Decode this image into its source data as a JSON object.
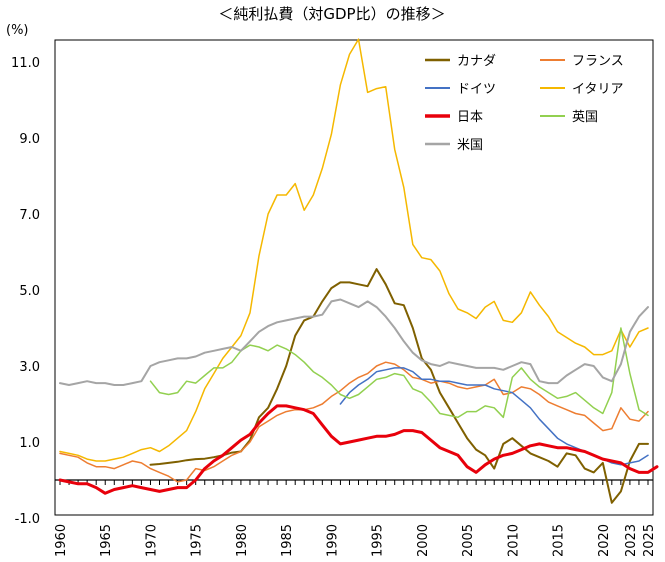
{
  "chart_data": {
    "type": "line",
    "title": "＜純利払費（対GDP比）の推移＞",
    "ylabel": "(%)",
    "xlabel": "",
    "ylim": [
      -1.0,
      11.6
    ],
    "y_ticks": [
      "-1.0",
      "1.0",
      "3.0",
      "5.0",
      "7.0",
      "9.0",
      "11.0"
    ],
    "x_tick_labels": [
      "1960",
      "1965",
      "1970",
      "1975",
      "1980",
      "1985",
      "1990",
      "1995",
      "2000",
      "2005",
      "2010",
      "2015",
      "2020",
      "2023",
      "2025"
    ],
    "grid": false,
    "series": [
      {
        "name": "カナダ",
        "color": "#7f6000",
        "width": 2,
        "start": 1970,
        "values": [
          0.4,
          0.42,
          0.45,
          0.48,
          0.52,
          0.55,
          0.56,
          0.6,
          0.65,
          0.72,
          0.75,
          1.05,
          1.65,
          1.9,
          2.4,
          3.0,
          3.8,
          4.2,
          4.3,
          4.7,
          5.05,
          5.2,
          5.2,
          5.15,
          5.1,
          5.55,
          5.15,
          4.65,
          4.6,
          4.0,
          3.2,
          2.9,
          2.3,
          1.9,
          1.5,
          1.1,
          0.8,
          0.65,
          0.3,
          0.95,
          1.1,
          0.9,
          0.7,
          0.6,
          0.5,
          0.35,
          0.7,
          0.65,
          0.3,
          0.2,
          0.45,
          -0.6,
          -0.3,
          0.5,
          0.95,
          0.95
        ]
      },
      {
        "name": "フランス",
        "color": "#ed7d31",
        "width": 1.5,
        "start": 1960,
        "values": [
          0.7,
          0.65,
          0.6,
          0.45,
          0.35,
          0.35,
          0.3,
          0.4,
          0.5,
          0.45,
          0.3,
          0.2,
          0.1,
          -0.05,
          0.0,
          0.3,
          0.25,
          0.35,
          0.5,
          0.65,
          0.75,
          1.0,
          1.4,
          1.55,
          1.7,
          1.8,
          1.85,
          1.85,
          1.9,
          2.0,
          2.2,
          2.35,
          2.55,
          2.7,
          2.8,
          3.0,
          3.1,
          3.05,
          2.9,
          2.7,
          2.65,
          2.55,
          2.6,
          2.55,
          2.45,
          2.4,
          2.45,
          2.5,
          2.65,
          2.25,
          2.3,
          2.45,
          2.4,
          2.25,
          2.05,
          1.95,
          1.85,
          1.75,
          1.7,
          1.5,
          1.3,
          1.35,
          1.9,
          1.6,
          1.55,
          1.8
        ]
      },
      {
        "name": "ドイツ",
        "color": "#4472c4",
        "width": 1.5,
        "start": 1991,
        "values": [
          2.0,
          2.3,
          2.5,
          2.65,
          2.85,
          2.9,
          2.95,
          2.95,
          2.85,
          2.65,
          2.65,
          2.6,
          2.6,
          2.55,
          2.5,
          2.5,
          2.5,
          2.4,
          2.35,
          2.3,
          2.1,
          1.9,
          1.6,
          1.35,
          1.1,
          0.95,
          0.85,
          0.75,
          0.65,
          0.55,
          0.45,
          0.4,
          0.45,
          0.5,
          0.65
        ]
      },
      {
        "name": "イタリア",
        "color": "#f5b800",
        "width": 1.5,
        "start": 1960,
        "values": [
          0.75,
          0.7,
          0.65,
          0.55,
          0.5,
          0.5,
          0.55,
          0.6,
          0.7,
          0.8,
          0.85,
          0.75,
          0.9,
          1.1,
          1.3,
          1.8,
          2.4,
          2.8,
          3.2,
          3.5,
          3.8,
          4.4,
          5.9,
          7.0,
          7.5,
          7.5,
          7.8,
          7.1,
          7.5,
          8.2,
          9.1,
          10.4,
          11.2,
          11.6,
          10.2,
          10.3,
          10.35,
          8.7,
          7.7,
          6.2,
          5.85,
          5.8,
          5.5,
          4.9,
          4.5,
          4.4,
          4.25,
          4.55,
          4.7,
          4.2,
          4.15,
          4.4,
          4.95,
          4.6,
          4.3,
          3.9,
          3.75,
          3.6,
          3.5,
          3.3,
          3.3,
          3.4,
          3.95,
          3.5,
          3.9,
          4.0
        ]
      },
      {
        "name": "日本",
        "color": "#e8000b",
        "width": 3,
        "start": 1960,
        "values": [
          0.0,
          -0.05,
          -0.1,
          -0.1,
          -0.2,
          -0.35,
          -0.25,
          -0.2,
          -0.15,
          -0.2,
          -0.25,
          -0.3,
          -0.25,
          -0.2,
          -0.2,
          0.0,
          0.3,
          0.5,
          0.65,
          0.85,
          1.05,
          1.2,
          1.5,
          1.75,
          1.95,
          1.95,
          1.9,
          1.85,
          1.75,
          1.45,
          1.15,
          0.95,
          1.0,
          1.05,
          1.1,
          1.15,
          1.15,
          1.2,
          1.3,
          1.3,
          1.25,
          1.05,
          0.85,
          0.75,
          0.65,
          0.35,
          0.2,
          0.4,
          0.55,
          0.65,
          0.7,
          0.8,
          0.9,
          0.95,
          0.9,
          0.85,
          0.85,
          0.8,
          0.75,
          0.65,
          0.55,
          0.5,
          0.45,
          0.3,
          0.2,
          0.2,
          0.35
        ]
      },
      {
        "name": "英国",
        "color": "#92d050",
        "width": 1.5,
        "start": 1970,
        "values": [
          2.6,
          2.3,
          2.25,
          2.3,
          2.6,
          2.55,
          2.75,
          2.95,
          2.95,
          3.1,
          3.4,
          3.55,
          3.5,
          3.4,
          3.55,
          3.45,
          3.3,
          3.1,
          2.85,
          2.7,
          2.5,
          2.25,
          2.15,
          2.25,
          2.45,
          2.65,
          2.7,
          2.8,
          2.75,
          2.4,
          2.3,
          2.05,
          1.75,
          1.7,
          1.65,
          1.8,
          1.8,
          1.95,
          1.9,
          1.65,
          2.7,
          2.95,
          2.65,
          2.45,
          2.3,
          2.15,
          2.2,
          2.3,
          2.1,
          1.9,
          1.75,
          2.3,
          4.0,
          2.8,
          1.85,
          1.7
        ]
      },
      {
        "name": "米国",
        "color": "#a5a5a5",
        "width": 2,
        "start": 1960,
        "values": [
          2.55,
          2.5,
          2.55,
          2.6,
          2.55,
          2.55,
          2.5,
          2.5,
          2.55,
          2.6,
          3.0,
          3.1,
          3.15,
          3.2,
          3.2,
          3.25,
          3.35,
          3.4,
          3.45,
          3.5,
          3.4,
          3.65,
          3.9,
          4.05,
          4.15,
          4.2,
          4.25,
          4.3,
          4.3,
          4.35,
          4.7,
          4.75,
          4.65,
          4.55,
          4.7,
          4.55,
          4.3,
          4.0,
          3.65,
          3.35,
          3.15,
          3.05,
          3.0,
          3.1,
          3.05,
          3.0,
          2.95,
          2.95,
          2.95,
          2.9,
          3.0,
          3.1,
          3.05,
          2.6,
          2.55,
          2.55,
          2.75,
          2.9,
          3.05,
          3.0,
          2.7,
          2.6,
          3.05,
          3.9,
          4.3,
          4.55
        ]
      }
    ]
  }
}
